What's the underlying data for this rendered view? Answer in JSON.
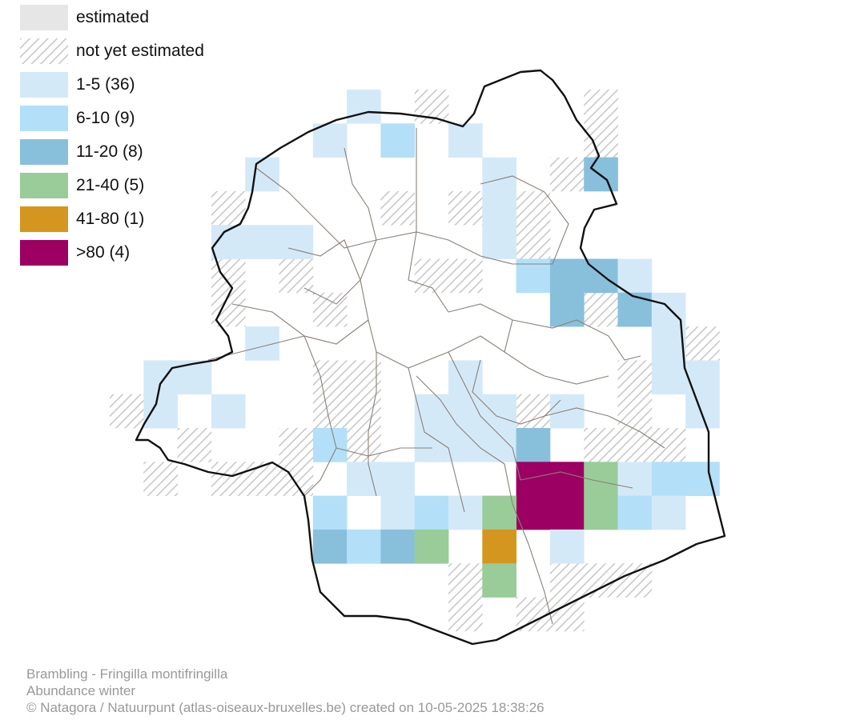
{
  "legend": {
    "items": [
      {
        "label": "estimated",
        "kind": "solid",
        "color": "#e6e6e6"
      },
      {
        "label": "not yet estimated",
        "kind": "hatched",
        "color": "#d0d0d0"
      },
      {
        "label": "1-5 (36)",
        "kind": "solid",
        "color": "#d4e9f8"
      },
      {
        "label": "6-10 (9)",
        "kind": "solid",
        "color": "#b3e0f8"
      },
      {
        "label": "11-20 (8)",
        "kind": "solid",
        "color": "#88c0dc"
      },
      {
        "label": "21-40 (5)",
        "kind": "solid",
        "color": "#99cc99"
      },
      {
        "label": "41-80 (1)",
        "kind": "solid",
        "color": "#d4961e"
      },
      {
        "label": ">80 (4)",
        "kind": "solid",
        "color": "#9c0063"
      }
    ]
  },
  "footer": {
    "species": "Brambling - Fringilla montifringilla",
    "map_type": "Abundance winter",
    "credit": "© Natagora / Natuurpunt (atlas-oiseaux-bruxelles.be) created on 10-05-2025 18:38:26"
  },
  "map": {
    "class_colors": {
      "1-5": "#d4e9f8",
      "6-10": "#b3e0f8",
      "11-20": "#88c0dc",
      "21-40": "#99cc99",
      "41-80": "#d4961e",
      ">80": "#9c0063"
    },
    "hatch_color": "#c8c8c8",
    "boundary_color": "#111111",
    "commune_line_color": "#8a8078"
  }
}
